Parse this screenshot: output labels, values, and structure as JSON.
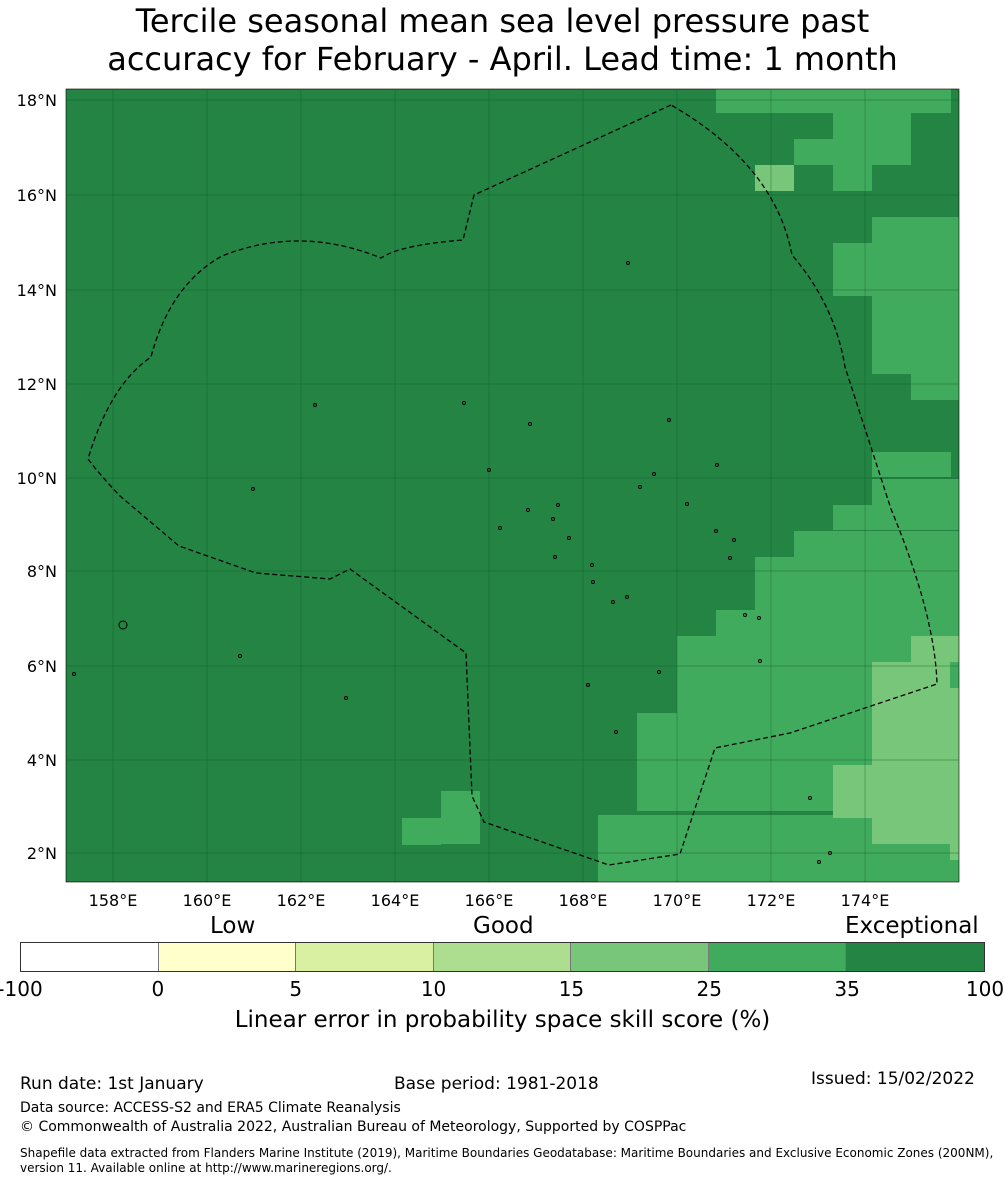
{
  "title": {
    "line1": "Tercile seasonal mean sea level pressure past",
    "line2": "accuracy for February - April. Lead time: 1 month"
  },
  "map": {
    "lat_range": [
      1.4,
      18.3
    ],
    "lon_range": [
      157.0,
      176.0
    ],
    "lat_ticks": [
      "18°N",
      "16°N",
      "14°N",
      "12°N",
      "10°N",
      "8°N",
      "6°N",
      "4°N",
      "2°N"
    ],
    "lon_ticks": [
      "158°E",
      "160°E",
      "162°E",
      "164°E",
      "166°E",
      "168°E",
      "170°E",
      "172°E",
      "174°E"
    ],
    "colors": {
      "exceptional": "#238443",
      "very_good": "#41ab5d",
      "good_high": "#78c679",
      "good": "#addd8e",
      "low_high": "#d9f0a3",
      "low": "#ffffcc",
      "none": "#ffffff"
    }
  },
  "legend": {
    "categories": [
      "Low",
      "Good",
      "Exceptional"
    ],
    "bin_labels": [
      "-100",
      "0",
      "5",
      "10",
      "15",
      "25",
      "35",
      "100"
    ],
    "bin_colors": [
      "#ffffff",
      "#ffffcc",
      "#d9f0a3",
      "#addd8e",
      "#78c679",
      "#41ab5d",
      "#238443"
    ],
    "label": "Linear error in probability space skill score (%)"
  },
  "footer": {
    "run_date": "Run date: 1st January",
    "base_period": "Base period: 1981-2018",
    "issued": "Issued: 15/02/2022",
    "data_source": "Data source: ACCESS-S2 and ERA5 Climate Reanalysis",
    "copyright": "© Commonwealth of Australia 2022, Australian Bureau of Meteorology, Supported by COSPPac",
    "shapefile": "Shapefile data extracted from Flanders Marine Institute (2019), Maritime Boundaries Geodatabase: Maritime Boundaries and Exclusive Economic Zones (200NM), version 11. Available online at http://www.marineregions.org/."
  }
}
